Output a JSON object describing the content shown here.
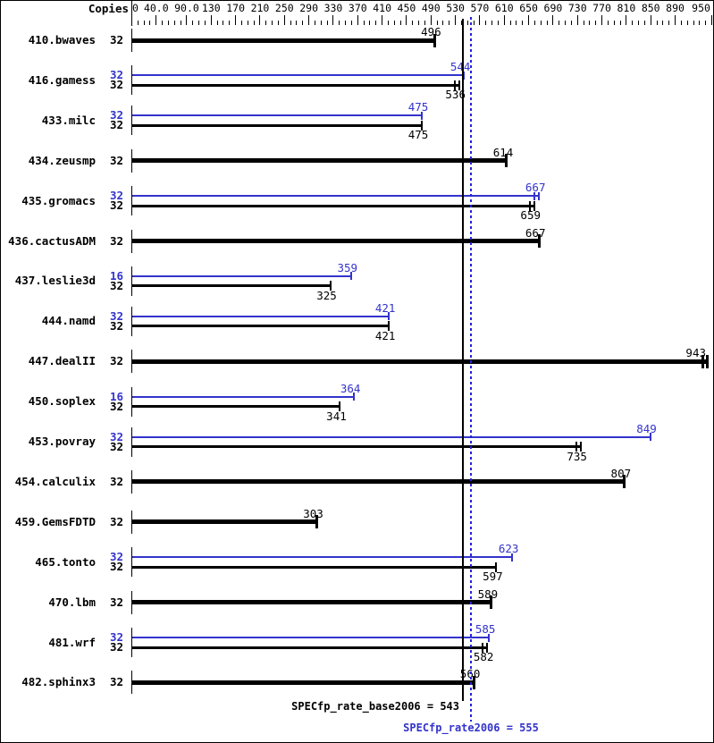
{
  "header": {
    "copies_label": "Copies"
  },
  "footer": {
    "base_text": "SPECfp_rate_base2006 = 543",
    "peak_text": "SPECfp_rate2006 = 555"
  },
  "colors": {
    "base": "#000000",
    "peak": "#3333cc",
    "peak_line": "#2222dd",
    "background": "#ffffff"
  },
  "chart_data": {
    "type": "bar",
    "orientation": "horizontal",
    "title": "",
    "x_axis": {
      "min": 0,
      "max": 950,
      "minor_tick_step": 10,
      "tick_values": [
        0,
        40,
        90,
        130,
        170,
        210,
        250,
        290,
        330,
        370,
        410,
        450,
        490,
        530,
        570,
        610,
        650,
        690,
        730,
        770,
        810,
        850,
        890,
        950
      ],
      "tick_labels": [
        "0",
        "40.0",
        "90.0",
        "130",
        "170",
        "210",
        "250",
        "290",
        "330",
        "370",
        "410",
        "450",
        "490",
        "530",
        "570",
        "610",
        "650",
        "690",
        "730",
        "770",
        "810",
        "850",
        "890",
        "950"
      ]
    },
    "reference_lines": [
      {
        "name": "SPECfp_rate_base2006",
        "value": 543,
        "style": "solid",
        "color": "#000000"
      },
      {
        "name": "SPECfp_rate2006",
        "value": 555,
        "style": "dotted",
        "color": "#2222dd"
      }
    ],
    "benchmarks": [
      {
        "name": "410.bwaves",
        "bars": [
          {
            "kind": "base",
            "copies": 32,
            "value": 496
          }
        ]
      },
      {
        "name": "416.gamess",
        "bars": [
          {
            "kind": "peak",
            "copies": 32,
            "value": 544
          },
          {
            "kind": "base",
            "copies": 32,
            "value": 536,
            "range": true
          }
        ]
      },
      {
        "name": "433.milc",
        "bars": [
          {
            "kind": "peak",
            "copies": 32,
            "value": 475
          },
          {
            "kind": "base",
            "copies": 32,
            "value": 475
          }
        ]
      },
      {
        "name": "434.zeusmp",
        "bars": [
          {
            "kind": "base",
            "copies": 32,
            "value": 614
          }
        ]
      },
      {
        "name": "435.gromacs",
        "bars": [
          {
            "kind": "peak",
            "copies": 32,
            "value": 667,
            "range": true
          },
          {
            "kind": "base",
            "copies": 32,
            "value": 659,
            "range": true
          }
        ]
      },
      {
        "name": "436.cactusADM",
        "bars": [
          {
            "kind": "base",
            "copies": 32,
            "value": 667
          }
        ]
      },
      {
        "name": "437.leslie3d",
        "bars": [
          {
            "kind": "peak",
            "copies": 16,
            "value": 359
          },
          {
            "kind": "base",
            "copies": 32,
            "value": 325
          }
        ]
      },
      {
        "name": "444.namd",
        "bars": [
          {
            "kind": "peak",
            "copies": 32,
            "value": 421
          },
          {
            "kind": "base",
            "copies": 32,
            "value": 421
          }
        ]
      },
      {
        "name": "447.dealII",
        "bars": [
          {
            "kind": "base",
            "copies": 32,
            "value": 943,
            "range": true
          }
        ]
      },
      {
        "name": "450.soplex",
        "bars": [
          {
            "kind": "peak",
            "copies": 16,
            "value": 364
          },
          {
            "kind": "base",
            "copies": 32,
            "value": 341
          }
        ]
      },
      {
        "name": "453.povray",
        "bars": [
          {
            "kind": "peak",
            "copies": 32,
            "value": 849
          },
          {
            "kind": "base",
            "copies": 32,
            "value": 735,
            "range": true
          }
        ]
      },
      {
        "name": "454.calculix",
        "bars": [
          {
            "kind": "base",
            "copies": 32,
            "value": 807
          }
        ]
      },
      {
        "name": "459.GemsFDTD",
        "bars": [
          {
            "kind": "base",
            "copies": 32,
            "value": 303
          }
        ]
      },
      {
        "name": "465.tonto",
        "bars": [
          {
            "kind": "peak",
            "copies": 32,
            "value": 623
          },
          {
            "kind": "base",
            "copies": 32,
            "value": 597
          }
        ]
      },
      {
        "name": "470.lbm",
        "bars": [
          {
            "kind": "base",
            "copies": 32,
            "value": 589
          }
        ]
      },
      {
        "name": "481.wrf",
        "bars": [
          {
            "kind": "peak",
            "copies": 32,
            "value": 585
          },
          {
            "kind": "base",
            "copies": 32,
            "value": 582,
            "range": true
          }
        ]
      },
      {
        "name": "482.sphinx3",
        "bars": [
          {
            "kind": "base",
            "copies": 32,
            "value": 560
          }
        ]
      }
    ]
  }
}
